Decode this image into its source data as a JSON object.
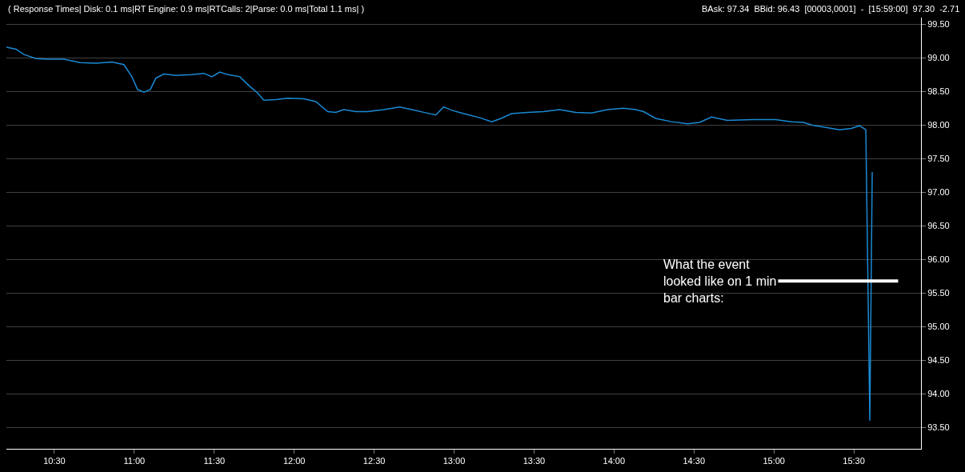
{
  "chart_data": {
    "type": "line",
    "subtitle": "( Response Times| Disk: 0.1 ms|RT Engine: 0.9 ms|RTCalls: 2|Parse: 0.0 ms|Total 1.1 ms| )",
    "annotations": [
      "BAsk: 97.34  BBid: 96.43  [00003,0001]  -  [15:59:00]  97.30  -2.71",
      "What the event\nlooked like on 1 min\nbar charts:"
    ],
    "x": [
      10.2,
      10.26,
      10.31,
      10.385,
      10.46,
      10.56,
      10.66,
      10.76,
      10.86,
      10.935,
      10.985,
      11.02,
      11.06,
      11.1,
      11.135,
      11.185,
      11.26,
      11.36,
      11.435,
      11.485,
      11.535,
      11.585,
      11.66,
      11.72,
      11.77,
      11.81,
      11.885,
      11.96,
      12.06,
      12.135,
      12.21,
      12.26,
      12.31,
      12.385,
      12.46,
      12.56,
      12.66,
      12.735,
      12.81,
      12.885,
      12.935,
      12.985,
      13.06,
      13.16,
      13.235,
      13.285,
      13.36,
      13.46,
      13.56,
      13.66,
      13.76,
      13.86,
      13.96,
      14.06,
      14.135,
      14.185,
      14.26,
      14.36,
      14.46,
      14.535,
      14.61,
      14.71,
      14.86,
      15.01,
      15.11,
      15.185,
      15.235,
      15.31,
      15.41,
      15.485,
      15.535,
      15.575,
      15.6,
      15.615
    ],
    "series": [
      {
        "color": "#1a8ad4",
        "values": [
          99.16,
          99.13,
          99.05,
          98.99,
          98.98,
          98.98,
          98.93,
          98.92,
          98.94,
          98.9,
          98.72,
          98.53,
          98.49,
          98.53,
          98.7,
          98.76,
          98.74,
          98.75,
          98.77,
          98.72,
          98.79,
          98.75,
          98.72,
          98.58,
          98.48,
          98.37,
          98.38,
          98.4,
          98.39,
          98.35,
          98.2,
          98.19,
          98.23,
          98.2,
          98.2,
          98.23,
          98.27,
          98.23,
          98.19,
          98.15,
          98.27,
          98.22,
          98.17,
          98.11,
          98.05,
          98.09,
          98.17,
          98.19,
          98.2,
          98.23,
          98.19,
          98.18,
          98.23,
          98.25,
          98.23,
          98.2,
          98.1,
          98.05,
          98.02,
          98.04,
          98.12,
          98.07,
          98.08,
          98.08,
          98.05,
          98.04,
          98.0,
          97.97,
          97.93,
          97.95,
          97.99,
          97.93,
          93.6,
          97.3
        ]
      }
    ],
    "xlim": [
      10.2,
      15.92
    ],
    "ylim": [
      93.18,
      99.6
    ],
    "xticks": [
      {
        "value": 10.5,
        "label": "10:30"
      },
      {
        "value": 11,
        "label": "11:00"
      },
      {
        "value": 11.5,
        "label": "11:30"
      },
      {
        "value": 12,
        "label": "12:00"
      },
      {
        "value": 12.5,
        "label": "12:30"
      },
      {
        "value": 13,
        "label": "13:00"
      },
      {
        "value": 13.5,
        "label": "13:30"
      },
      {
        "value": 14,
        "label": "14:00"
      },
      {
        "value": 14.5,
        "label": "14:30"
      },
      {
        "value": 15,
        "label": "15:00"
      },
      {
        "value": 15.5,
        "label": "15:30"
      }
    ],
    "yticks": [
      {
        "value": 93.5,
        "label": "93.50"
      },
      {
        "value": 94,
        "label": "94.00"
      },
      {
        "value": 94.5,
        "label": "94.50"
      },
      {
        "value": 95,
        "label": "95.00"
      },
      {
        "value": 95.5,
        "label": "95.50"
      },
      {
        "value": 96,
        "label": "96.00"
      },
      {
        "value": 96.5,
        "label": "96.50"
      },
      {
        "value": 97,
        "label": "97.00"
      },
      {
        "value": 97.5,
        "label": "97.50"
      },
      {
        "value": 98,
        "label": "98.00"
      },
      {
        "value": 98.5,
        "label": "98.50"
      },
      {
        "value": 99,
        "label": "99.00"
      },
      {
        "value": 99.5,
        "label": "99.50"
      }
    ],
    "grid": "y",
    "marker": "none",
    "line_style": "solid"
  }
}
